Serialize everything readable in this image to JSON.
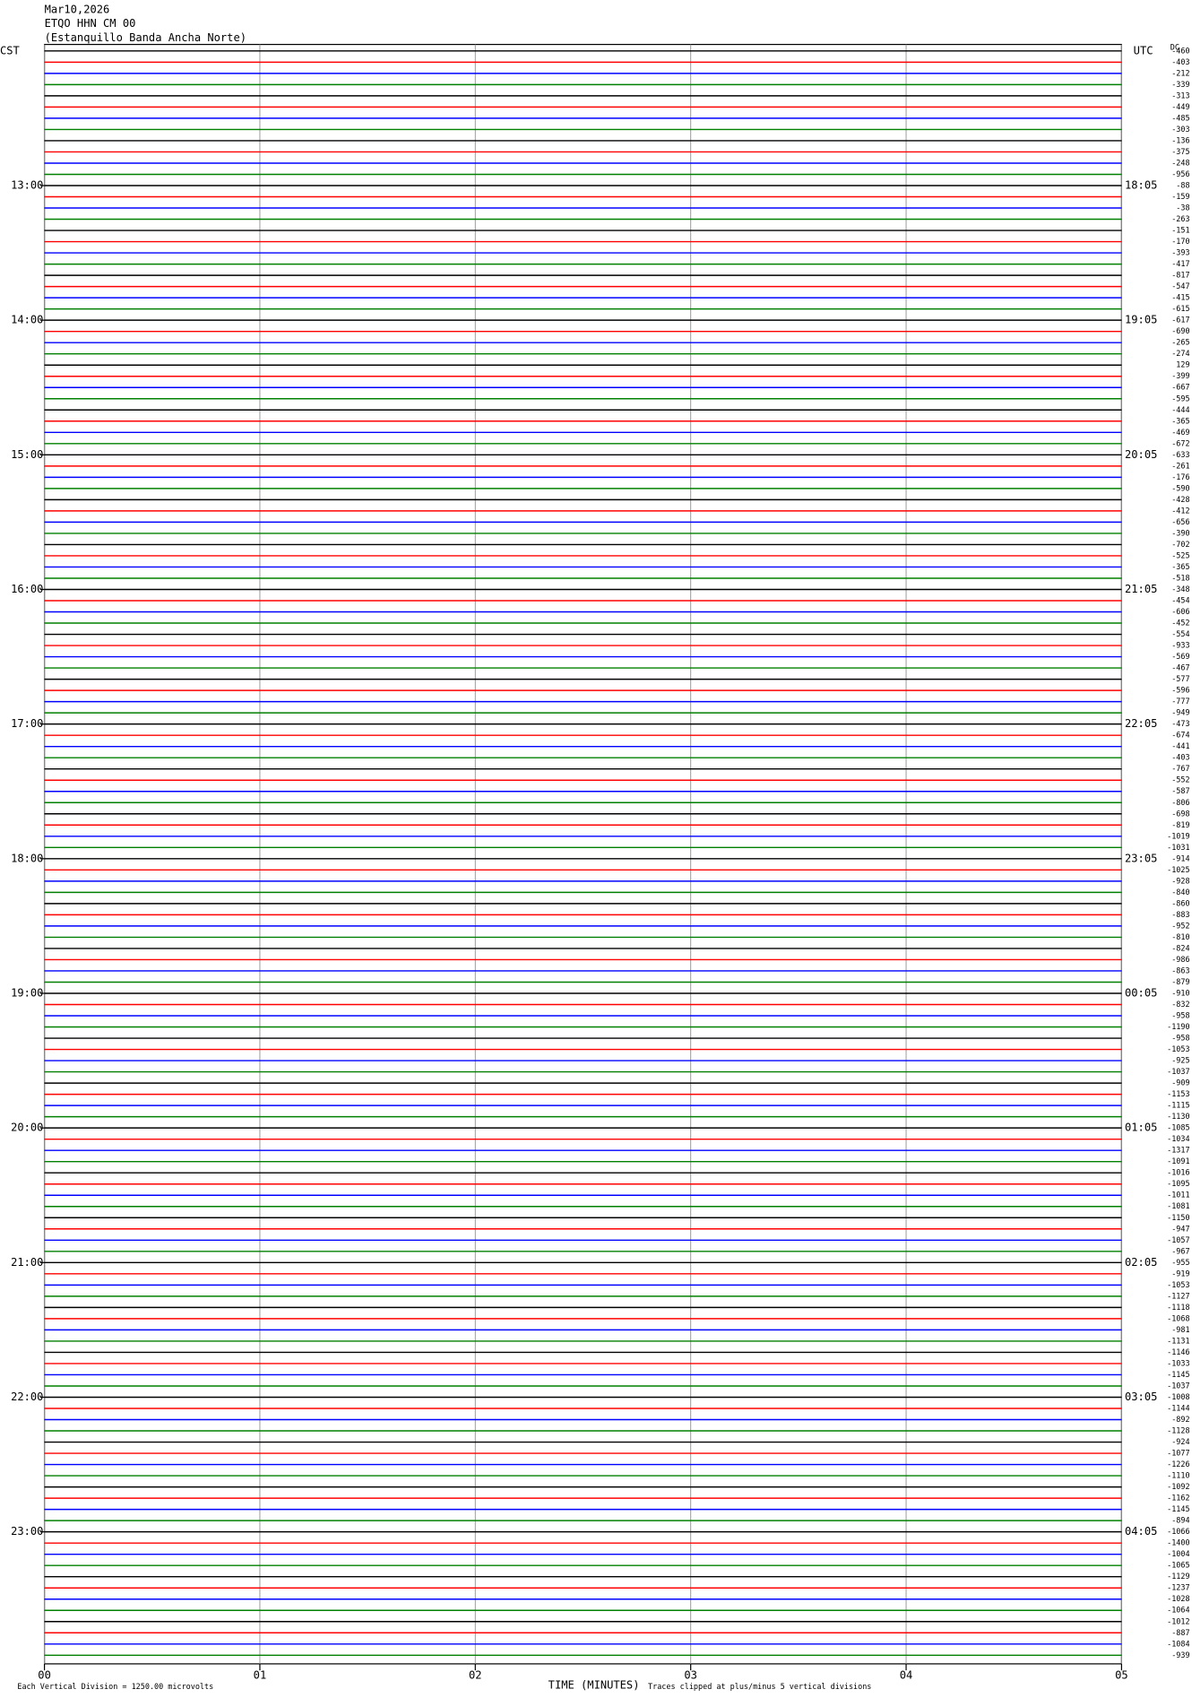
{
  "chart_data": {
    "type": "helicorder",
    "title_lines": [
      "Mar10,2026",
      "ETQO HHN CM 00",
      "(Estanquillo Banda Ancha Norte)"
    ],
    "left_zone": "CST",
    "right_zone": "UTC",
    "offset_header": "DC",
    "left_labels": [
      "13:00",
      "14:00",
      "15:00",
      "16:00",
      "17:00",
      "18:00",
      "19:00",
      "20:00",
      "21:00",
      "22:00",
      "23:00"
    ],
    "right_labels": [
      "18:05",
      "19:05",
      "20:05",
      "21:05",
      "22:05",
      "23:05",
      "00:05",
      "01:05",
      "02:05",
      "03:05",
      "04:05"
    ],
    "colors": [
      "#000000",
      "#ff0000",
      "#0000ff",
      "#008000"
    ],
    "offsets": [
      -460,
      -403,
      -212,
      -339,
      -313,
      -449,
      -485,
      -303,
      -136,
      -375,
      -248,
      -956,
      -88,
      -159,
      -38,
      -263,
      -151,
      -170,
      -393,
      -417,
      -817,
      -547,
      -415,
      -615,
      -617,
      -690,
      -265,
      -274,
      129,
      -399,
      -667,
      -595,
      -444,
      -365,
      -469,
      -672,
      -633,
      -261,
      -176,
      -590,
      -428,
      -412,
      -656,
      -390,
      -702,
      -525,
      -365,
      -518,
      -348,
      -454,
      -606,
      -452,
      -554,
      -933,
      -569,
      -467,
      -577,
      -596,
      -777,
      -949,
      -473,
      -674,
      -441,
      -403,
      -767,
      -552,
      -587,
      -806,
      -698,
      -819,
      -1019,
      -1031,
      -914,
      -1025,
      -928,
      -840,
      -860,
      -883,
      -952,
      -810,
      -824,
      -986,
      -863,
      -879,
      -910,
      -832,
      -958,
      -1190,
      -958,
      -1053,
      -925,
      -1037,
      -909,
      -1153,
      -1115,
      -1130,
      -1085,
      -1034,
      -1317,
      -1091,
      -1016,
      -1095,
      -1011,
      -1081,
      -1150,
      -947,
      -1057,
      -967,
      -955,
      -919,
      -1053,
      -1127,
      -1118,
      -1068,
      -981,
      -1131,
      -1146,
      -1033,
      -1145,
      -1037,
      -1008,
      -1144,
      -892,
      -1128,
      -924,
      -1077,
      -1226,
      -1110,
      -1092,
      -1162,
      -1145,
      -894,
      -1066,
      -1400,
      -1004,
      -1065,
      -1129,
      -1237,
      -1028,
      -1064,
      -1012,
      -887,
      -1084,
      -939
    ],
    "xlim": [
      0,
      5
    ],
    "xticks": [
      {
        "value": 0,
        "label": "00"
      },
      {
        "value": 1,
        "label": "01"
      },
      {
        "value": 2,
        "label": "02"
      },
      {
        "value": 3,
        "label": "03"
      },
      {
        "value": 4,
        "label": "04"
      },
      {
        "value": 5,
        "label": "05"
      }
    ],
    "xlabel": "TIME (MINUTES)",
    "footnote_left": "Each Vertical Division = 1250.00 microvolts",
    "footnote_right": "Traces clipped at plus/minus 5 vertical divisions",
    "grid": true
  }
}
